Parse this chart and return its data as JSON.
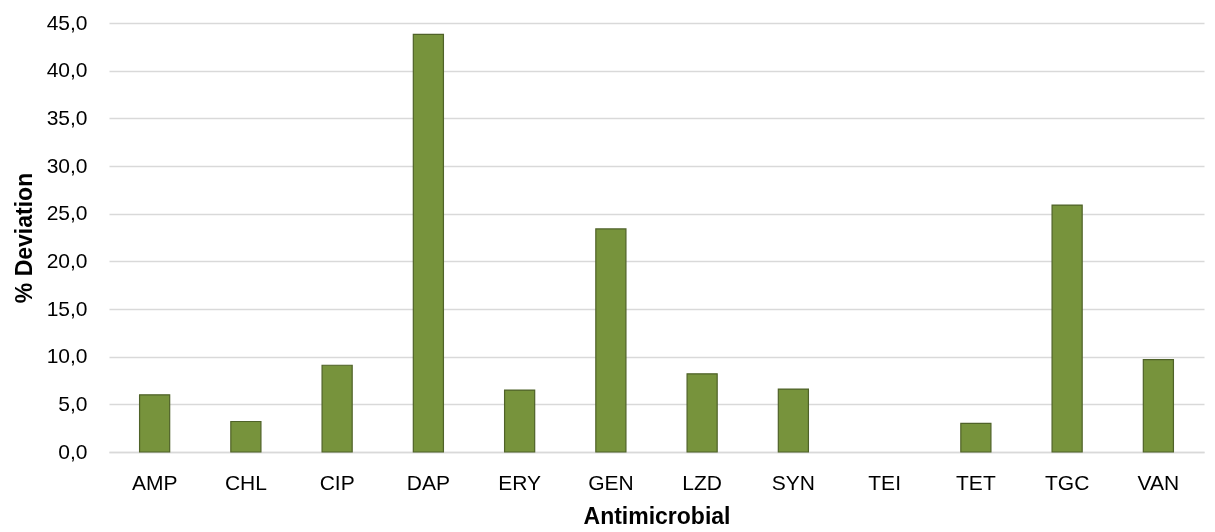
{
  "chart_data": {
    "type": "bar",
    "xlabel": "Antimicrobial",
    "ylabel": "% Deviation",
    "categories": [
      "AMP",
      "CHL",
      "CIP",
      "DAP",
      "ERY",
      "GEN",
      "LZD",
      "SYN",
      "TEI",
      "TET",
      "TGC",
      "VAN"
    ],
    "values": [
      6.0,
      3.2,
      9.1,
      43.8,
      6.5,
      23.4,
      8.2,
      6.6,
      null,
      3.0,
      25.9,
      9.7
    ],
    "color": "#77933c",
    "ylim": [
      0,
      45
    ],
    "yticks": [
      {
        "value": 0,
        "label": "0,0"
      },
      {
        "value": 5,
        "label": "5,0"
      },
      {
        "value": 10,
        "label": "10,0"
      },
      {
        "value": 15,
        "label": "15,0"
      },
      {
        "value": 20,
        "label": "20,0"
      },
      {
        "value": 25,
        "label": "25,0"
      },
      {
        "value": 30,
        "label": "30,0"
      },
      {
        "value": 35,
        "label": "35,0"
      },
      {
        "value": 40,
        "label": "40,0"
      },
      {
        "value": 45,
        "label": "45,0"
      }
    ],
    "grid": "y"
  }
}
